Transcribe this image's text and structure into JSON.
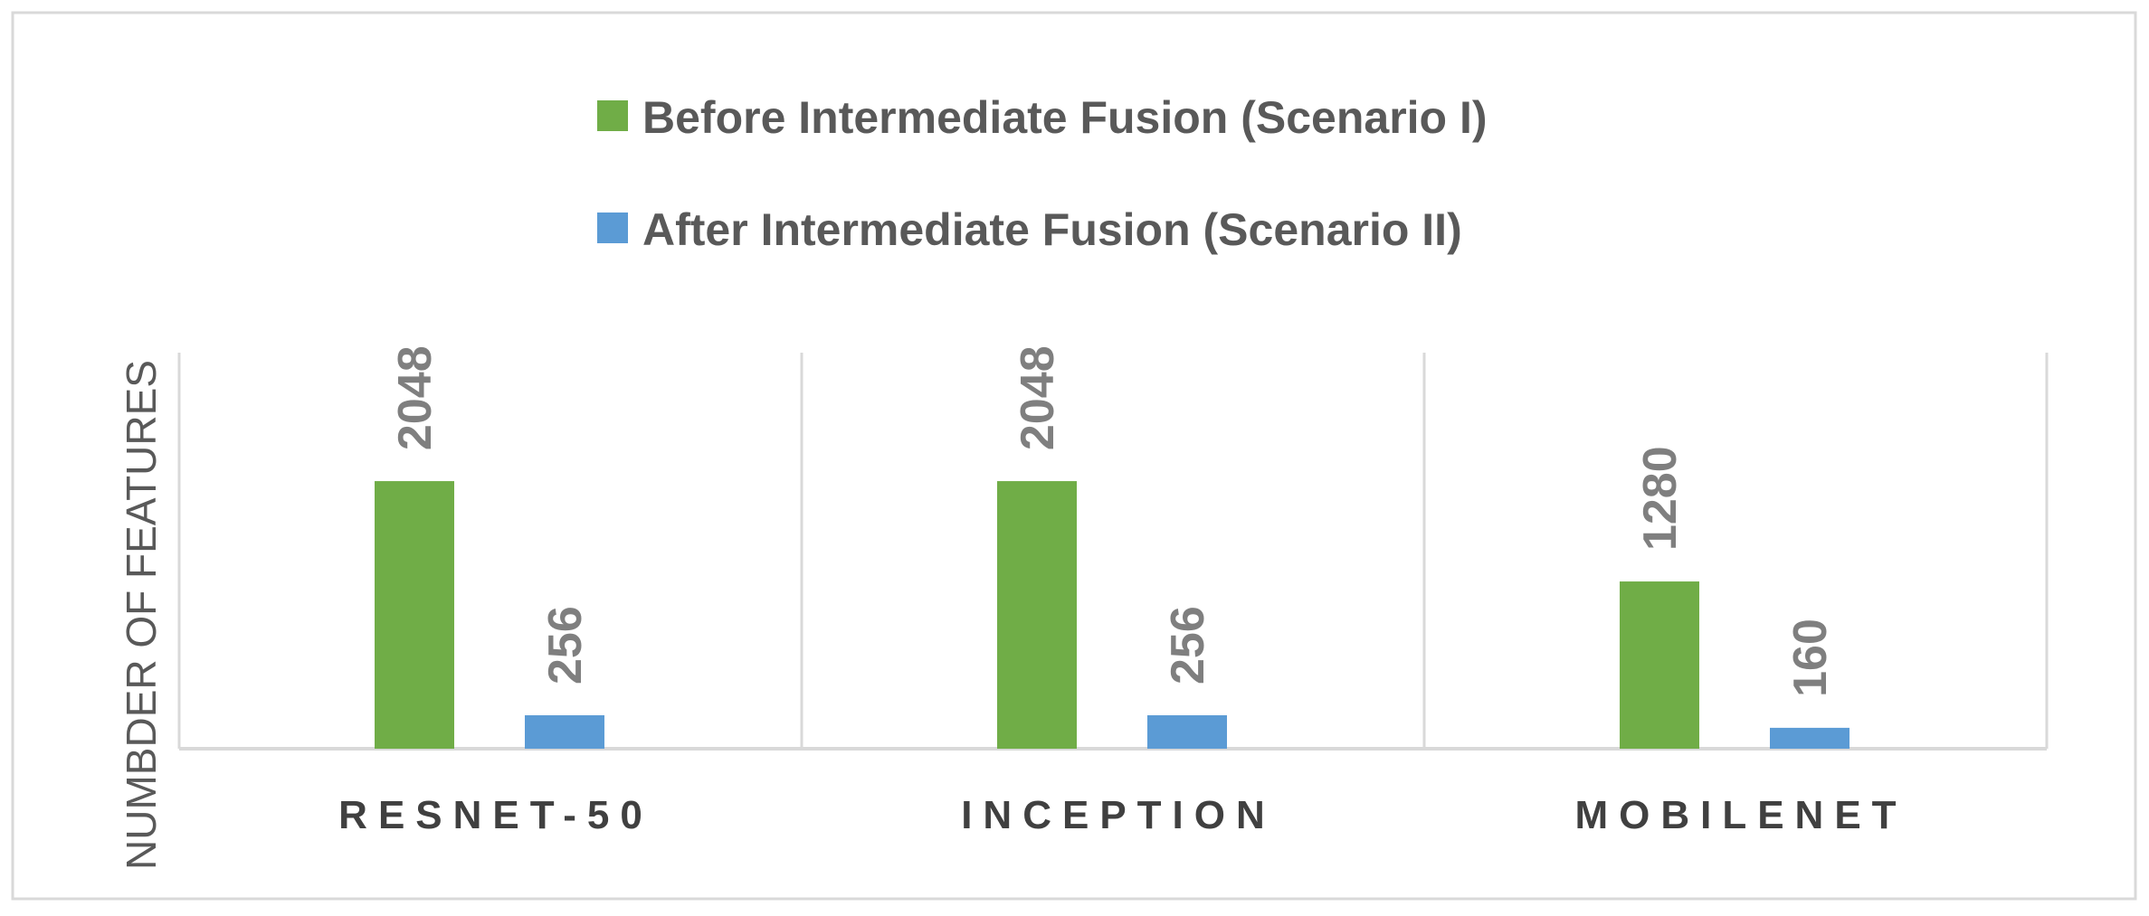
{
  "chart_data": {
    "type": "bar",
    "title": "",
    "xlabel": "",
    "ylabel": "NUMBDER OF FEATURES",
    "categories": [
      "RESNET-50",
      "INCEPTION",
      "MOBILENET"
    ],
    "series": [
      {
        "name": "Before Intermediate Fusion (Scenario I)",
        "values": [
          2048,
          2048,
          1280
        ],
        "color": "#70AD47"
      },
      {
        "name": "After Intermediate Fusion (Scenario II)",
        "values": [
          256,
          256,
          160
        ],
        "color": "#5B9BD5"
      }
    ],
    "ylim": [
      0,
      3000
    ],
    "grid": false,
    "legend_position": "top-center",
    "data_labels": true,
    "colors": {
      "axis": "#D9D9D9",
      "border": "#D9D9D9",
      "category_separator": "#D9D9D9"
    }
  }
}
